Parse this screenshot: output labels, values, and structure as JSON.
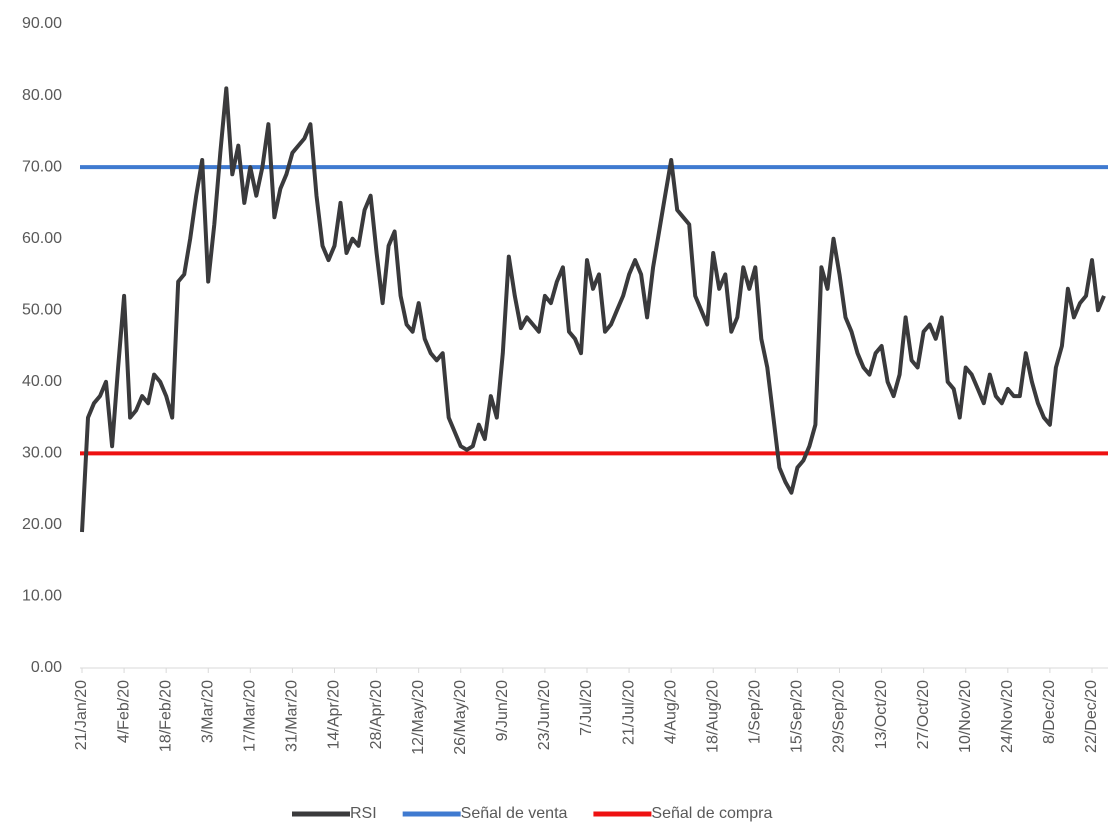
{
  "chart_data": {
    "type": "line",
    "categories": [
      "21/Jan/20",
      null,
      null,
      null,
      null,
      null,
      null,
      "4/Feb/20",
      null,
      null,
      null,
      null,
      null,
      null,
      "18/Feb/20",
      null,
      null,
      null,
      null,
      null,
      null,
      "3/Mar/20",
      null,
      null,
      null,
      null,
      null,
      null,
      "17/Mar/20",
      null,
      null,
      null,
      null,
      null,
      null,
      "31/Mar/20",
      null,
      null,
      null,
      null,
      null,
      null,
      "14/Apr/20",
      null,
      null,
      null,
      null,
      null,
      null,
      "28/Apr/20",
      null,
      null,
      null,
      null,
      null,
      null,
      "12/May/20",
      null,
      null,
      null,
      null,
      null,
      null,
      "26/May/20",
      null,
      null,
      null,
      null,
      null,
      null,
      "9/Jun/20",
      null,
      null,
      null,
      null,
      null,
      null,
      "23/Jun/20",
      null,
      null,
      null,
      null,
      null,
      null,
      "7/Jul/20",
      null,
      null,
      null,
      null,
      null,
      null,
      "21/Jul/20",
      null,
      null,
      null,
      null,
      null,
      null,
      "4/Aug/20",
      null,
      null,
      null,
      null,
      null,
      null,
      "18/Aug/20",
      null,
      null,
      null,
      null,
      null,
      null,
      "1/Sep/20",
      null,
      null,
      null,
      null,
      null,
      null,
      "15/Sep/20",
      null,
      null,
      null,
      null,
      null,
      null,
      "29/Sep/20",
      null,
      null,
      null,
      null,
      null,
      null,
      "13/Oct/20",
      null,
      null,
      null,
      null,
      null,
      null,
      "27/Oct/20",
      null,
      null,
      null,
      null,
      null,
      null,
      "10/Nov/20",
      null,
      null,
      null,
      null,
      null,
      null,
      "24/Nov/20",
      null,
      null,
      null,
      null,
      null,
      null,
      "8/Dec/20",
      null,
      null,
      null,
      null,
      null,
      null,
      "22/Dec/20",
      null,
      null
    ],
    "series": [
      {
        "name": "RSI",
        "color": "#3a3a3c",
        "values": [
          19,
          35,
          37,
          38,
          40,
          31,
          42,
          52,
          35,
          36,
          38,
          37,
          41,
          40,
          38,
          35,
          54,
          55,
          60,
          66,
          71,
          54,
          62,
          72,
          81,
          69,
          73,
          65,
          70,
          66,
          70,
          76,
          63,
          67,
          69,
          72,
          73,
          74,
          76,
          66,
          59,
          57,
          59,
          65,
          58,
          60,
          59,
          64,
          66,
          58,
          51,
          59,
          61,
          52,
          48,
          47,
          51,
          46,
          44,
          43,
          44,
          35,
          33,
          31,
          30.5,
          31,
          34,
          32,
          38,
          35,
          44,
          57.5,
          52,
          47.5,
          49,
          48,
          47,
          52,
          51,
          54,
          56,
          47,
          46,
          44,
          57,
          53,
          55,
          47,
          48,
          50,
          52,
          55,
          57,
          55,
          49,
          56,
          61,
          66,
          71,
          64,
          63,
          62,
          52,
          50,
          48,
          58,
          53,
          55,
          47,
          49,
          56,
          53,
          56,
          46,
          42,
          35,
          28,
          26,
          24.5,
          28,
          29,
          31,
          34,
          56,
          53,
          60,
          55,
          49,
          47,
          44,
          42,
          41,
          44,
          45,
          40,
          38,
          41,
          49,
          43,
          42,
          47,
          48,
          46,
          49,
          40,
          39,
          35,
          42,
          41,
          39,
          37,
          41,
          38,
          37,
          39,
          38,
          38,
          44,
          40,
          37,
          35,
          34,
          42,
          45,
          53,
          49,
          51,
          52,
          57,
          50,
          52
        ]
      }
    ],
    "reference_lines": [
      {
        "name": "Señal de venta",
        "color": "#3f7ad0",
        "value": 70
      },
      {
        "name": "Señal de compra",
        "color": "#ee1111",
        "value": 30
      }
    ],
    "ylim": [
      0,
      90
    ],
    "yticks": [
      {
        "value": 0,
        "label": "0.00"
      },
      {
        "value": 10,
        "label": "10.00"
      },
      {
        "value": 20,
        "label": "20.00"
      },
      {
        "value": 30,
        "label": "30.00"
      },
      {
        "value": 40,
        "label": "40.00"
      },
      {
        "value": 50,
        "label": "50.00"
      },
      {
        "value": 60,
        "label": "60.00"
      },
      {
        "value": 70,
        "label": "70.00"
      },
      {
        "value": 80,
        "label": "80.00"
      },
      {
        "value": 90,
        "label": "90.00"
      }
    ],
    "grid": false,
    "legend": "bottom"
  }
}
